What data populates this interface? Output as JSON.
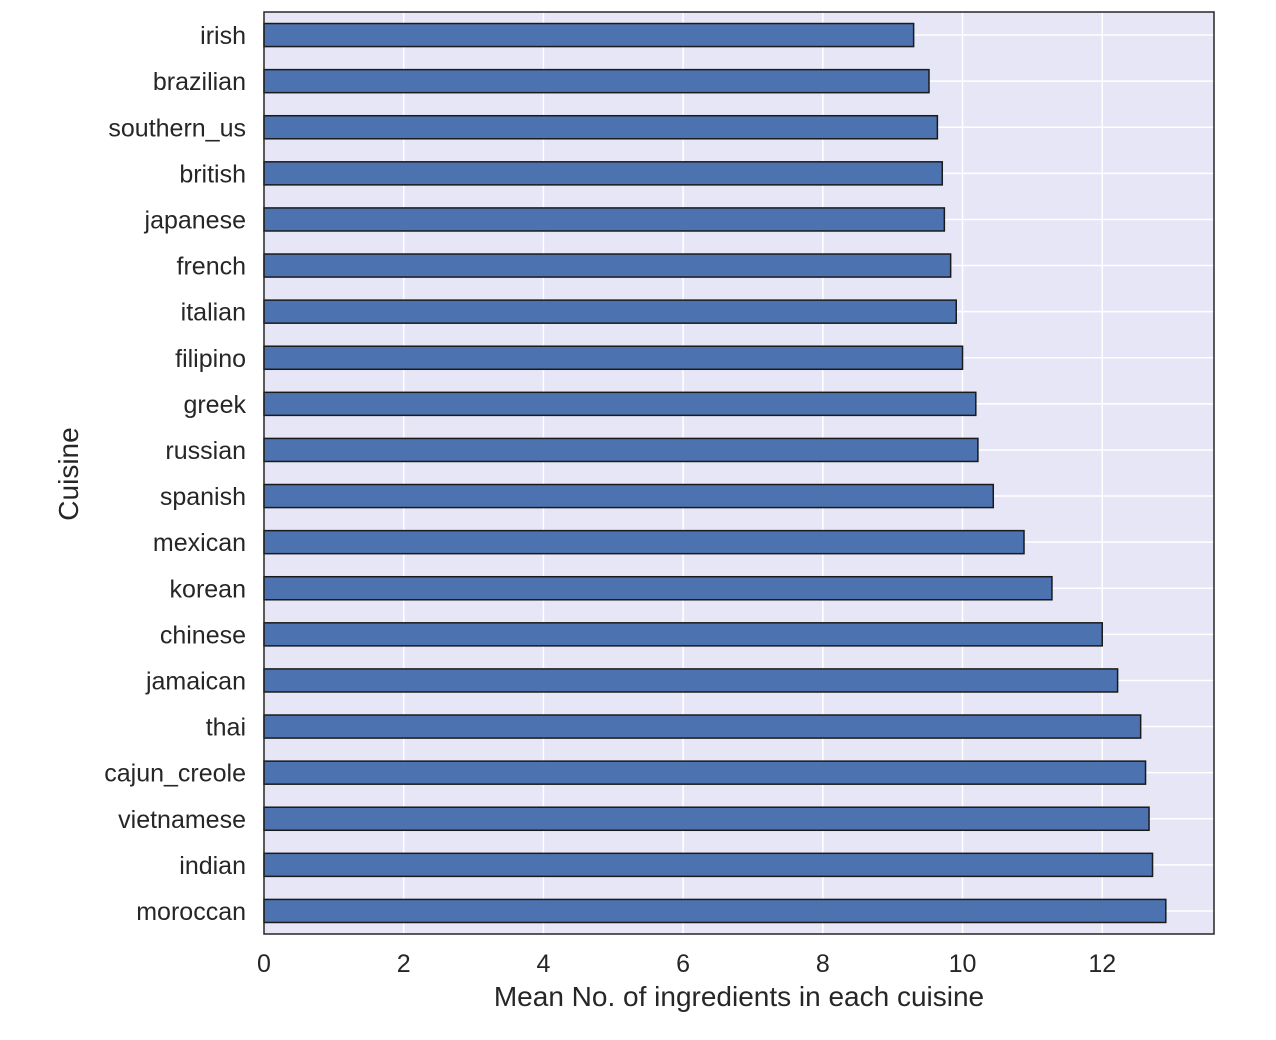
{
  "chart_data": {
    "type": "bar",
    "orientation": "horizontal",
    "xlabel": "Mean No. of ingredients in each cuisine",
    "ylabel": "Cuisine",
    "categories": [
      "irish",
      "brazilian",
      "southern_us",
      "british",
      "japanese",
      "french",
      "italian",
      "filipino",
      "greek",
      "russian",
      "spanish",
      "mexican",
      "korean",
      "chinese",
      "jamaican",
      "thai",
      "cajun_creole",
      "vietnamese",
      "indian",
      "moroccan"
    ],
    "values": [
      9.3,
      9.52,
      9.64,
      9.71,
      9.74,
      9.83,
      9.91,
      10.0,
      10.19,
      10.22,
      10.44,
      10.88,
      11.28,
      12.0,
      12.22,
      12.55,
      12.62,
      12.67,
      12.72,
      12.91
    ],
    "xlim": [
      0,
      13.6
    ],
    "xticks": [
      0,
      2,
      4,
      6,
      8,
      10,
      12
    ],
    "grid": true,
    "bar_color": "#4c72b0",
    "plot_background": "#e6e6f7",
    "grid_color": "#ffffff"
  }
}
